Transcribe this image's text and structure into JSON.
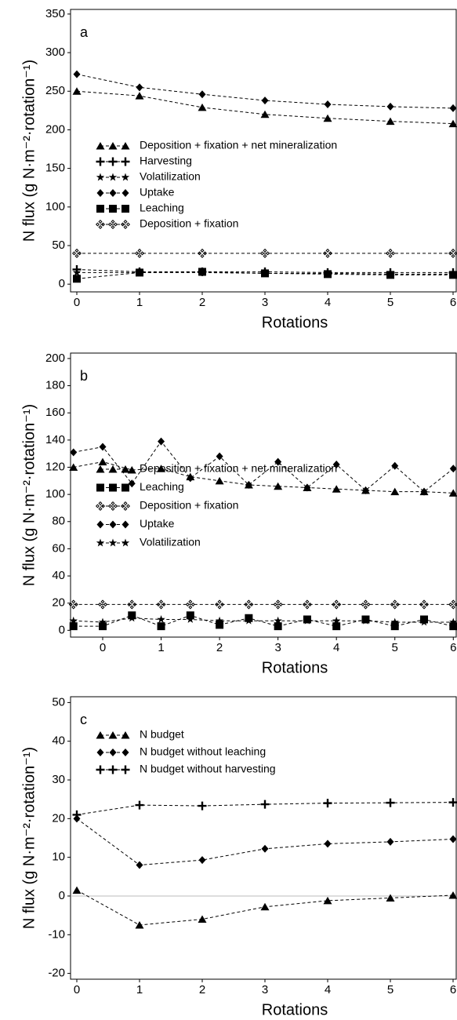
{
  "chart_data": [
    {
      "type": "line",
      "panel_label": "a",
      "ylabel": "N flux (g N·m⁻²·rotation⁻¹)",
      "xlabel": "Rotations",
      "x": [
        0,
        1,
        2,
        3,
        4,
        5,
        6
      ],
      "xlim": [
        -0.1,
        6.05
      ],
      "xticks": [
        0,
        1,
        2,
        3,
        4,
        5,
        6
      ],
      "ylim": [
        -10,
        356
      ],
      "yticks": [
        0,
        50,
        100,
        150,
        200,
        250,
        300,
        350
      ],
      "series": [
        {
          "name": "Deposition + fixation + net mineralization",
          "marker": "triangle",
          "color": "#000",
          "values": [
            250,
            244,
            229,
            220,
            215,
            211,
            208
          ]
        },
        {
          "name": "Harvesting",
          "marker": "plus",
          "color": "#000",
          "values": [
            19,
            16,
            16,
            16,
            15,
            15,
            15
          ]
        },
        {
          "name": "Volatilization",
          "marker": "star",
          "color": "#000",
          "values": [
            15,
            15,
            15,
            14,
            14,
            13,
            13
          ]
        },
        {
          "name": "Uptake",
          "marker": "diamond",
          "color": "#000",
          "values": [
            272,
            255,
            246,
            238,
            233,
            230,
            228
          ]
        },
        {
          "name": "Leaching",
          "marker": "square",
          "color": "#000",
          "values": [
            7,
            15,
            16,
            14,
            13,
            12,
            12
          ]
        },
        {
          "name": "Deposition + fixation",
          "marker": "open-cross",
          "color": "#000",
          "values": [
            40,
            40,
            40,
            40,
            40,
            40,
            40
          ]
        }
      ]
    },
    {
      "type": "line",
      "panel_label": "b",
      "ylabel": "N flux (g N·m⁻²·rotation⁻¹)",
      "xlabel": "Rotations",
      "x": [
        -0.5,
        0,
        0.5,
        1,
        1.5,
        2,
        2.5,
        3,
        3.5,
        4,
        4.5,
        5,
        5.5,
        6
      ],
      "xlim": [
        -0.55,
        6.05
      ],
      "xticks": [
        0,
        1,
        2,
        3,
        4,
        5,
        6
      ],
      "ylim": [
        -5,
        204
      ],
      "yticks": [
        0,
        20,
        40,
        60,
        80,
        100,
        120,
        140,
        160,
        180,
        200
      ],
      "series": [
        {
          "name": "Deposition + fixation + net mineralization",
          "marker": "triangle",
          "color": "#000",
          "values": [
            120,
            124,
            118,
            119,
            113,
            110,
            107,
            106,
            105,
            104,
            103,
            102,
            102,
            101
          ]
        },
        {
          "name": "Leaching",
          "marker": "square",
          "color": "#000",
          "values": [
            3,
            3,
            11,
            3,
            11,
            4,
            9,
            3,
            8,
            3,
            8,
            3,
            8,
            3
          ]
        },
        {
          "name": "Deposition + fixation",
          "marker": "open-cross",
          "color": "#000",
          "values": [
            19,
            19,
            19,
            19,
            19,
            19,
            19,
            19,
            19,
            19,
            19,
            19,
            19,
            19
          ]
        },
        {
          "name": "Uptake",
          "marker": "diamond",
          "color": "#000",
          "values": [
            131,
            135,
            108,
            139,
            112,
            128,
            107,
            124,
            105,
            122,
            103,
            121,
            102,
            119
          ]
        },
        {
          "name": "Volatilization",
          "marker": "star",
          "color": "#000",
          "values": [
            7,
            6,
            9,
            8,
            8,
            7,
            7,
            7,
            7,
            7,
            7,
            6,
            6,
            6
          ]
        }
      ]
    },
    {
      "type": "line",
      "panel_label": "c",
      "ylabel": "N flux (g N·m⁻²·rotation⁻¹)",
      "xlabel": "Rotations",
      "x": [
        0,
        1,
        2,
        3,
        4,
        5,
        6
      ],
      "xlim": [
        -0.1,
        6.05
      ],
      "xticks": [
        0,
        1,
        2,
        3,
        4,
        5,
        6
      ],
      "ylim": [
        -21.5,
        51.5
      ],
      "yticks": [
        -20,
        -10,
        0,
        10,
        20,
        30,
        40,
        50
      ],
      "zero_line": true,
      "series": [
        {
          "name": "N budget",
          "marker": "triangle",
          "color": "#000",
          "values": [
            1.5,
            -7.5,
            -6,
            -2.8,
            -1.2,
            -0.5,
            0.2
          ]
        },
        {
          "name": "N budget without leaching",
          "marker": "diamond",
          "color": "#000",
          "values": [
            20,
            8,
            9.3,
            12.2,
            13.5,
            14,
            14.7
          ]
        },
        {
          "name": "N budget without harvesting",
          "marker": "plus",
          "color": "#000",
          "values": [
            21,
            23.5,
            23.3,
            23.7,
            24,
            24.1,
            24.2
          ]
        }
      ]
    }
  ]
}
